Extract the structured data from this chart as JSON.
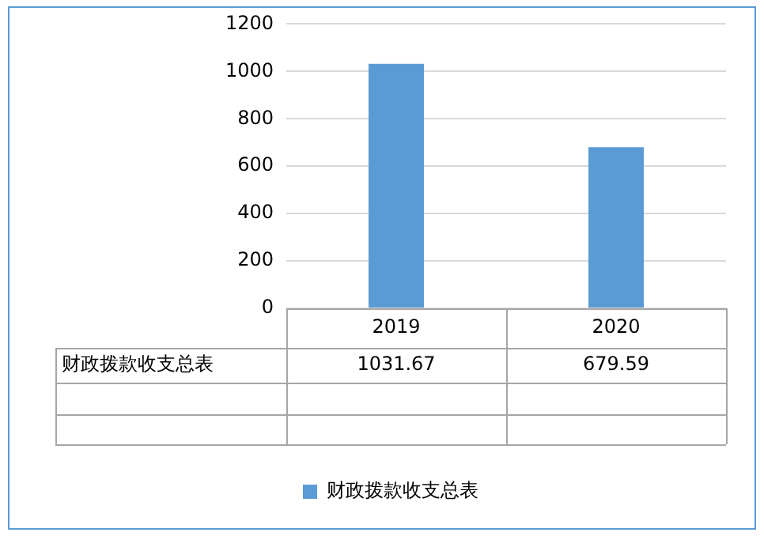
{
  "chart_data": {
    "type": "bar",
    "categories": [
      "2019",
      "2020"
    ],
    "series": [
      {
        "name": "财政拨款收支总表",
        "color": "#5b9bd5",
        "values": [
          1031.67,
          679.59
        ]
      }
    ],
    "ylim": [
      0,
      1200
    ],
    "yticks": [
      0,
      200,
      400,
      600,
      800,
      1000,
      1200
    ],
    "grid": "y",
    "legend": "bottom",
    "data_labels": true
  }
}
